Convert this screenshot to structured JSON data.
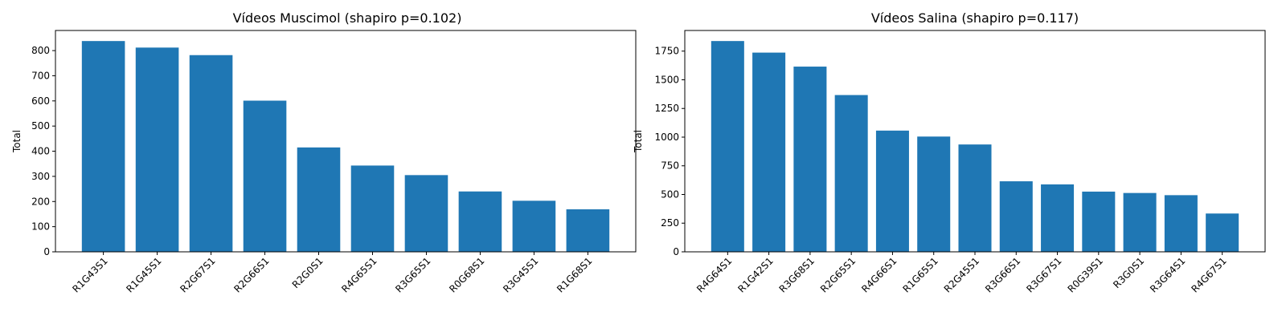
{
  "chart_data": [
    {
      "type": "bar",
      "title": "Vídeos Muscimol (shapiro p=0.102)",
      "xlabel": "",
      "ylabel": "Total",
      "categories": [
        "R1G43S1",
        "R1G45S1",
        "R2G67S1",
        "R2G66S1",
        "R2G0S1",
        "R4G65S1",
        "R3G65S1",
        "R0G68S1",
        "R3G45S1",
        "R1G68S1"
      ],
      "values": [
        838,
        812,
        782,
        601,
        415,
        343,
        305,
        240,
        203,
        169
      ],
      "ylim": [
        0,
        880
      ],
      "yticks": [
        0,
        100,
        200,
        300,
        400,
        500,
        600,
        700,
        800
      ],
      "bar_color": "#1f77b4",
      "grid": false
    },
    {
      "type": "bar",
      "title": "Vídeos Salina (shapiro p=0.117)",
      "xlabel": "",
      "ylabel": "Total",
      "categories": [
        "R4G64S1",
        "R1G42S1",
        "R3G68S1",
        "R2G65S1",
        "R4G66S1",
        "R1G65S1",
        "R2G45S1",
        "R3G66S1",
        "R3G67S1",
        "R0G39S1",
        "R3G0S1",
        "R3G64S1",
        "R4G67S1"
      ],
      "values": [
        1838,
        1737,
        1615,
        1367,
        1057,
        1005,
        936,
        615,
        588,
        525,
        513,
        494,
        334
      ],
      "ylim": [
        0,
        1930
      ],
      "yticks": [
        0,
        250,
        500,
        750,
        1000,
        1250,
        1500,
        1750
      ],
      "bar_color": "#1f77b4",
      "grid": false
    }
  ]
}
